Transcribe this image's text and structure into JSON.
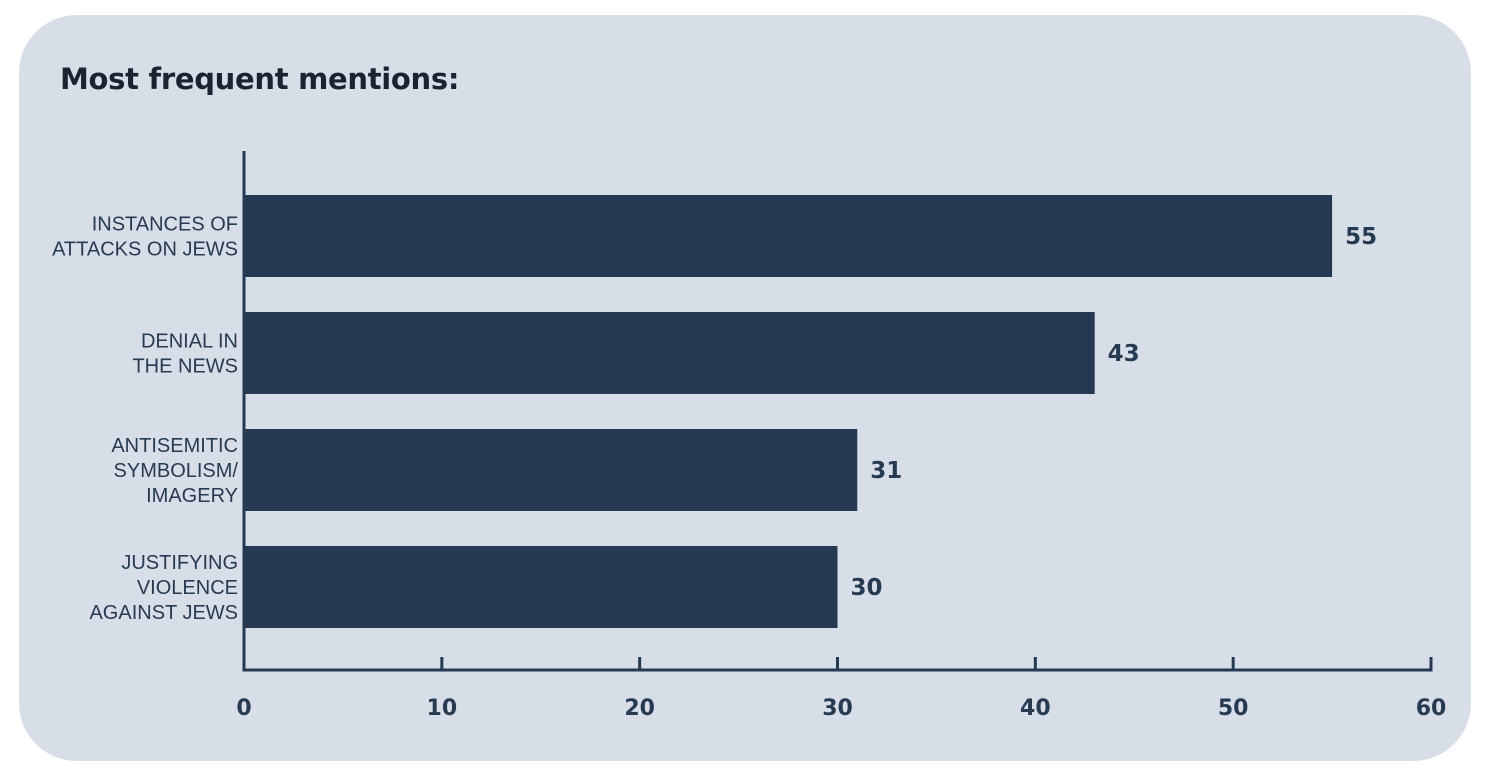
{
  "chart_data": {
    "type": "bar",
    "orientation": "horizontal",
    "title": "Most frequent mentions:",
    "categories": [
      [
        "INSTANCES OF",
        "ATTACKS ON JEWS"
      ],
      [
        "DENIAL IN",
        "THE NEWS"
      ],
      [
        "ANTISEMITIC",
        "SYMBOLISM/",
        "IMAGERY"
      ],
      [
        "JUSTIFYING",
        "VIOLENCE",
        "AGAINST JEWS"
      ]
    ],
    "values": [
      55,
      43,
      31,
      30
    ],
    "value_labels": [
      "55",
      "43",
      "31",
      "30"
    ],
    "xlim": [
      0,
      60
    ],
    "xticks": [
      0,
      10,
      20,
      30,
      40,
      50,
      60
    ],
    "xtick_labels": [
      "0",
      "10",
      "20",
      "30",
      "40",
      "50",
      "60"
    ],
    "xlabel": "",
    "ylabel": "",
    "grid": false,
    "legend": false,
    "colors": {
      "bar": "#253a52",
      "axis": "#253a52",
      "background": "#d8dee8",
      "text": "#263a52"
    }
  }
}
